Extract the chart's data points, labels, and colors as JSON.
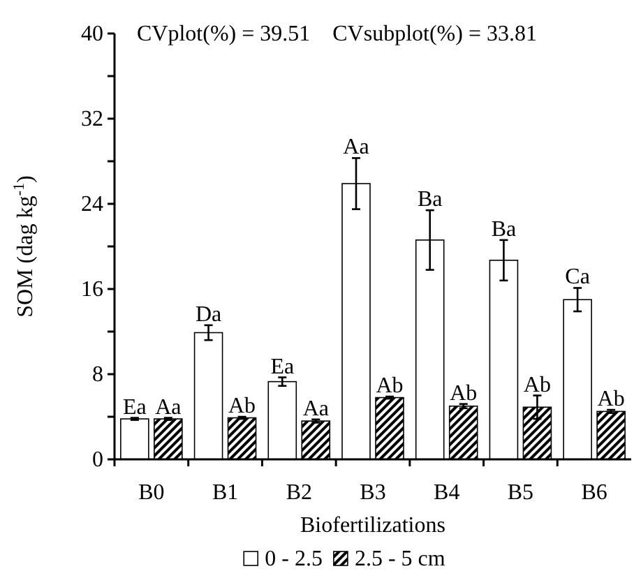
{
  "chart_data": {
    "type": "bar",
    "xlabel": "Biofertilizations",
    "ylabel": "SOM (dag kg$^{-1}$)",
    "categories": [
      "B0",
      "B1",
      "B2",
      "B3",
      "B4",
      "B5",
      "B6"
    ],
    "series": [
      {
        "name": "0 - 2.5",
        "color": "#ffffff",
        "values": [
          3.8,
          11.9,
          7.3,
          25.9,
          20.6,
          18.7,
          15.0
        ],
        "errors": [
          0.1,
          0.7,
          0.4,
          2.4,
          2.8,
          1.9,
          1.1
        ],
        "value_labels": [
          "Ea",
          "Da",
          "Ea",
          "Aa",
          "Ba",
          "Ba",
          "Ca"
        ]
      },
      {
        "name": "2.5 - 5 cm",
        "color": "#000000",
        "values": [
          3.8,
          3.9,
          3.6,
          5.8,
          5.0,
          4.9,
          4.5
        ],
        "errors": [
          0.1,
          0.1,
          0.15,
          0.1,
          0.2,
          1.1,
          0.15
        ],
        "value_labels": [
          "Aa",
          "Ab",
          "Aa",
          "Ab",
          "Ab",
          "Ab",
          "Ab"
        ]
      }
    ],
    "ylim": [
      0,
      40
    ],
    "yticks": [
      0,
      {
        "value": 4,
        "label": null
      },
      8,
      {
        "value": 12,
        "label": null
      },
      16,
      {
        "value": 20,
        "label": null
      },
      24,
      {
        "value": 28,
        "label": null
      },
      32,
      {
        "value": 36,
        "label": null
      },
      40
    ],
    "annotations": [
      "CVplot(%) = 39.51    CVsubplot(%) = 33.81"
    ],
    "legend": "bottom",
    "grid": false
  }
}
